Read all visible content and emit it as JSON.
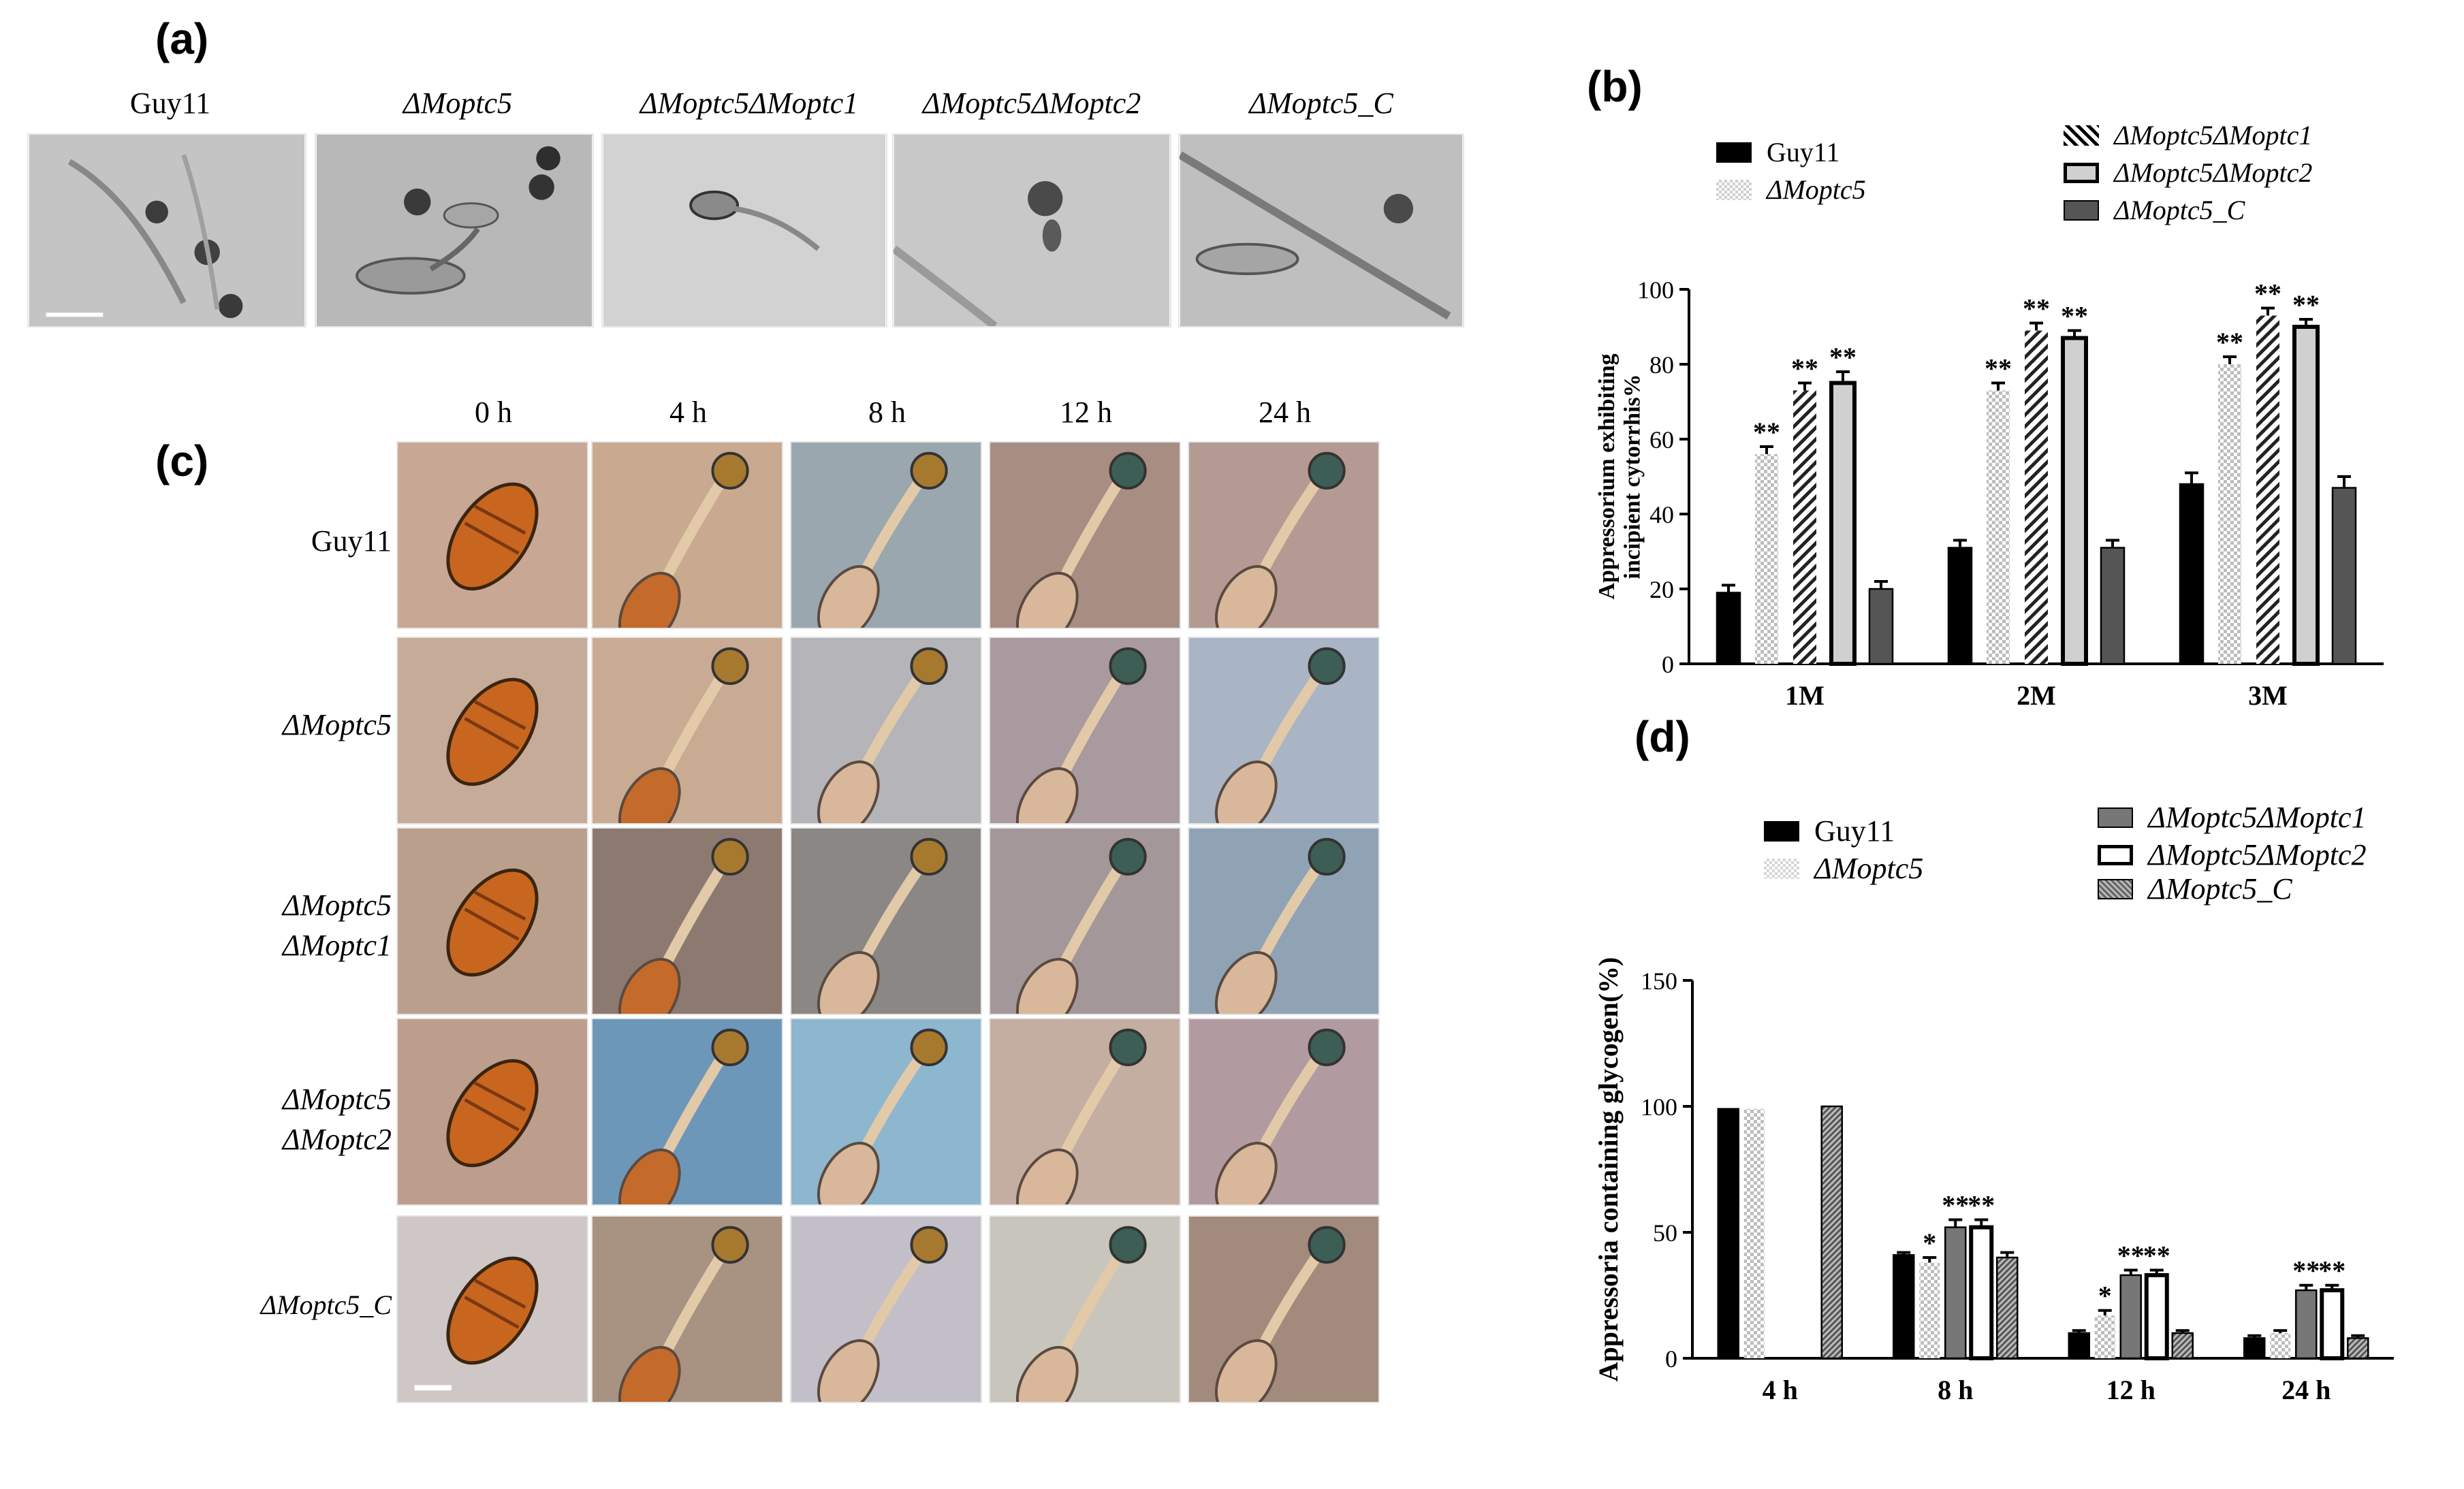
{
  "panels": {
    "a": {
      "letter": "(a)",
      "labels": [
        "Guy11",
        "ΔMoptc5",
        "ΔMoptc5ΔMoptc1",
        "ΔMoptc5ΔMoptc2",
        "ΔMoptc5_C"
      ]
    },
    "b": {
      "letter": "(b)"
    },
    "c": {
      "letter": "(c)",
      "columns": [
        "0 h",
        "4 h",
        "8 h",
        "12 h",
        "24 h"
      ],
      "rows": [
        {
          "line1": "Guy11",
          "line2": ""
        },
        {
          "line1": "ΔMoptc5",
          "line2": ""
        },
        {
          "line1": "ΔMoptc5",
          "line2": "ΔMoptc1"
        },
        {
          "line1": "ΔMoptc5",
          "line2": "ΔMoptc2"
        },
        {
          "line1": "ΔMoptc5_C",
          "line2": ""
        }
      ]
    },
    "d": {
      "letter": "(d)"
    }
  },
  "chart_data": [
    {
      "type": "bar",
      "panel": "b",
      "categories": [
        "1M",
        "2M",
        "3M"
      ],
      "ylabel": "Appressorium exhibiting incipient cytorrhis%",
      "xlabel": "",
      "ylim": [
        0,
        100
      ],
      "yticks": [
        0,
        20,
        40,
        60,
        80,
        100
      ],
      "legend": "top",
      "series": [
        {
          "name": "Guy11",
          "values": [
            19,
            31,
            48
          ],
          "errors": [
            2,
            2,
            3
          ],
          "sig": [
            "",
            "",
            ""
          ],
          "fill": "#000000",
          "pattern": "solid"
        },
        {
          "name": "ΔMoptc5",
          "values": [
            56,
            73,
            80
          ],
          "errors": [
            2,
            2,
            2
          ],
          "sig": [
            "**",
            "**",
            "**"
          ],
          "fill": "#e6e6e6",
          "pattern": "checker"
        },
        {
          "name": "ΔMoptc5ΔMoptc1",
          "values": [
            73,
            89,
            93
          ],
          "errors": [
            2,
            2,
            2
          ],
          "sig": [
            "**",
            "**",
            "**"
          ],
          "fill": "#ffffff",
          "pattern": "diagonal"
        },
        {
          "name": "ΔMoptc5ΔMoptc2",
          "values": [
            75,
            87,
            90
          ],
          "errors": [
            3,
            2,
            2
          ],
          "sig": [
            "**",
            "**",
            "**"
          ],
          "fill": "#d0d0d0",
          "pattern": "hollow"
        },
        {
          "name": "ΔMoptc5_C",
          "values": [
            20,
            31,
            47
          ],
          "errors": [
            2,
            2,
            3
          ],
          "sig": [
            "",
            "",
            ""
          ],
          "fill": "#555555",
          "pattern": "dark"
        }
      ]
    },
    {
      "type": "bar",
      "panel": "d",
      "categories": [
        "4 h",
        "8 h",
        "12 h",
        "24 h"
      ],
      "ylabel": "Appressoria containing glycogen(%)",
      "xlabel": "",
      "ylim": [
        0,
        150
      ],
      "yticks": [
        0,
        50,
        100,
        150
      ],
      "legend": "top",
      "series": [
        {
          "name": "Guy11",
          "values": [
            99,
            41,
            10,
            8
          ],
          "errors": [
            0,
            1,
            1,
            1
          ],
          "sig": [
            "",
            "",
            "",
            ""
          ],
          "fill": "#000000",
          "pattern": "solid"
        },
        {
          "name": "ΔMoptc5",
          "values": [
            99,
            38,
            17,
            10
          ],
          "errors": [
            0,
            2,
            2,
            1
          ],
          "sig": [
            "",
            "*",
            "*",
            ""
          ],
          "fill": "#e6e6e6",
          "pattern": "checker"
        },
        {
          "name": "ΔMoptc5ΔMoptc1",
          "values": [
            0,
            52,
            33,
            27
          ],
          "errors": [
            0,
            3,
            2,
            2
          ],
          "sig": [
            "",
            "**",
            "**",
            "**"
          ],
          "fill": "#777777",
          "pattern": "dark"
        },
        {
          "name": "ΔMoptc5ΔMoptc2",
          "values": [
            0,
            52,
            33,
            27
          ],
          "errors": [
            0,
            3,
            2,
            2
          ],
          "sig": [
            "",
            "**",
            "**",
            "**"
          ],
          "fill": "#ffffff",
          "pattern": "hollow"
        },
        {
          "name": "ΔMoptc5_C",
          "values": [
            100,
            40,
            10,
            8
          ],
          "errors": [
            0,
            2,
            1,
            1
          ],
          "sig": [
            "",
            "",
            "",
            ""
          ],
          "fill": "#999999",
          "pattern": "dense"
        }
      ]
    }
  ]
}
